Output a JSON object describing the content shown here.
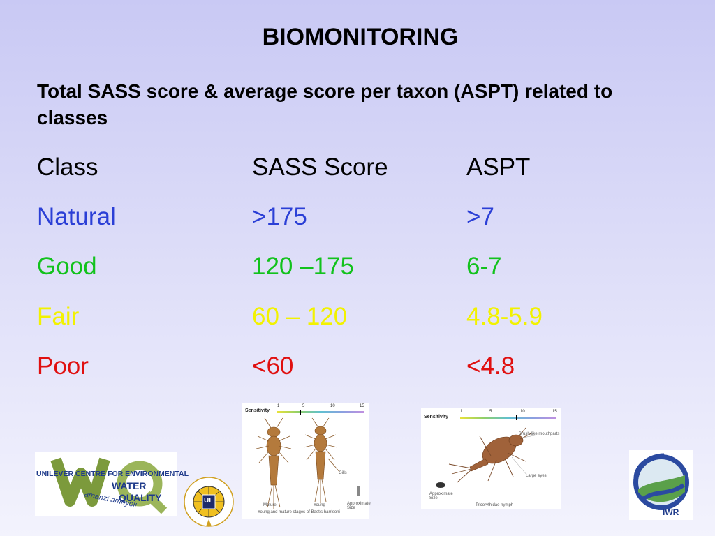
{
  "slide": {
    "title": "BIOMONITORING",
    "subtitle": "Total SASS score & average score per taxon  (ASPT) related to classes"
  },
  "table": {
    "headers": [
      "Class",
      "SASS Score",
      "ASPT"
    ],
    "rows": [
      {
        "class": "Natural",
        "sass": ">175",
        "aspt": ">7",
        "color": "#2b3fd6"
      },
      {
        "class": "Good",
        "sass": "120 –175",
        "aspt": "6-7",
        "color": "#12c21c"
      },
      {
        "class": "Fair",
        "sass": "60 – 120",
        "aspt": "4.8-5.9",
        "color": "#f2f200"
      },
      {
        "class": "Poor",
        "sass": "<60",
        "aspt": "<4.8",
        "color": "#e01010"
      }
    ]
  },
  "images": {
    "left_insect": {
      "sensitivity_label": "Sensitivity",
      "scale": [
        "1",
        "5",
        "10",
        "15"
      ],
      "labels": [
        "Mature",
        "Young",
        "Gills",
        "Approximate Size"
      ],
      "caption": "Young and mature stages of Baetis harrisoni"
    },
    "right_insect": {
      "sensitivity_label": "Sensitivity",
      "scale": [
        "1",
        "5",
        "10",
        "15"
      ],
      "labels": [
        "Brush-like mouthparts",
        "Large eyes",
        "Approximate Size"
      ],
      "caption": "Tricorythidae nymph"
    }
  },
  "logos": {
    "unilever": {
      "line1": "UNILEVER CENTRE FOR ENVIRONMENTAL",
      "line2": "WATER",
      "line3": "QUALITY",
      "script": "amanzi amnyoli"
    },
    "foundation": {
      "ring_text": "Unilever Foundation for Education & Development",
      "center": "UI"
    },
    "iwr": {
      "label": "IWR"
    }
  }
}
